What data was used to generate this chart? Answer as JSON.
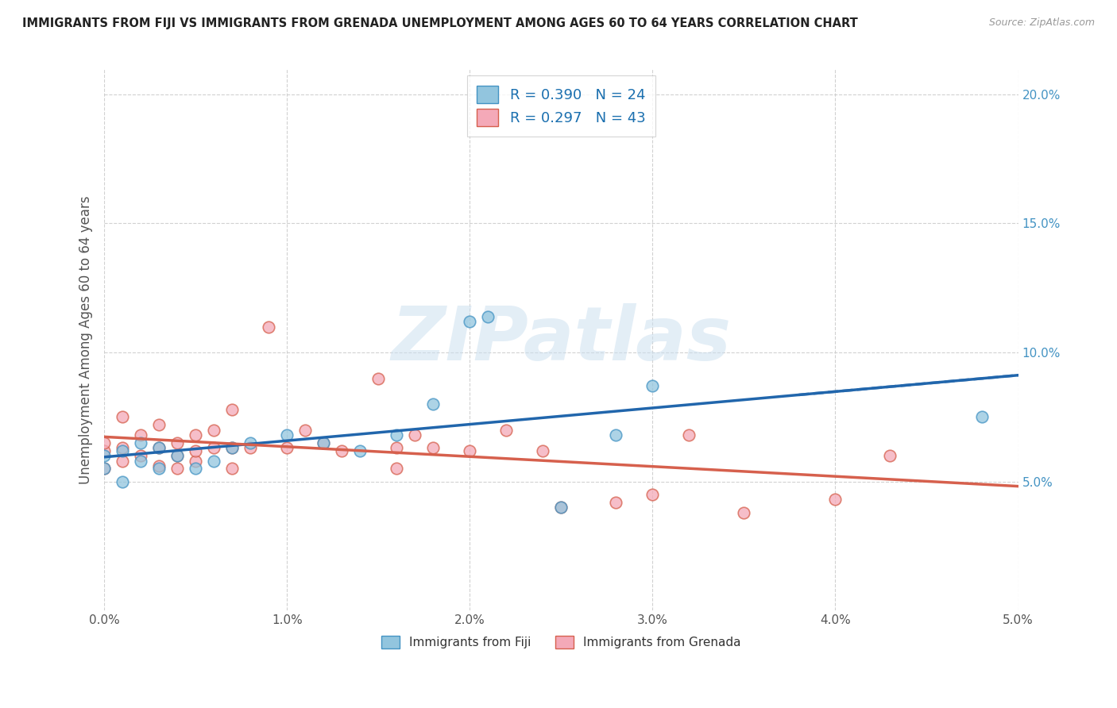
{
  "title": "IMMIGRANTS FROM FIJI VS IMMIGRANTS FROM GRENADA UNEMPLOYMENT AMONG AGES 60 TO 64 YEARS CORRELATION CHART",
  "source": "Source: ZipAtlas.com",
  "ylabel": "Unemployment Among Ages 60 to 64 years",
  "xlim": [
    0.0,
    0.05
  ],
  "ylim": [
    0.0,
    0.21
  ],
  "fiji_color": "#92c5de",
  "fiji_edge_color": "#4393c3",
  "grenada_color": "#f4a9b8",
  "grenada_edge_color": "#d6604d",
  "fiji_line_color": "#2166ac",
  "grenada_line_color": "#d6604d",
  "fiji_R": 0.39,
  "fiji_N": 24,
  "grenada_R": 0.297,
  "grenada_N": 43,
  "watermark_text": "ZIPatlas",
  "background_color": "#ffffff",
  "fiji_x": [
    0.0,
    0.0,
    0.001,
    0.001,
    0.002,
    0.002,
    0.003,
    0.003,
    0.004,
    0.005,
    0.006,
    0.007,
    0.008,
    0.01,
    0.012,
    0.014,
    0.016,
    0.018,
    0.02,
    0.021,
    0.025,
    0.028,
    0.03,
    0.048
  ],
  "fiji_y": [
    0.055,
    0.06,
    0.05,
    0.062,
    0.058,
    0.065,
    0.055,
    0.063,
    0.06,
    0.055,
    0.058,
    0.063,
    0.065,
    0.068,
    0.065,
    0.062,
    0.068,
    0.08,
    0.112,
    0.114,
    0.04,
    0.068,
    0.087,
    0.075
  ],
  "grenada_x": [
    0.0,
    0.0,
    0.0,
    0.001,
    0.001,
    0.001,
    0.002,
    0.002,
    0.003,
    0.003,
    0.003,
    0.004,
    0.004,
    0.004,
    0.005,
    0.005,
    0.005,
    0.006,
    0.006,
    0.007,
    0.007,
    0.007,
    0.008,
    0.009,
    0.01,
    0.011,
    0.012,
    0.013,
    0.015,
    0.016,
    0.016,
    0.017,
    0.018,
    0.02,
    0.022,
    0.024,
    0.025,
    0.028,
    0.03,
    0.032,
    0.035,
    0.04,
    0.043
  ],
  "grenada_y": [
    0.055,
    0.062,
    0.065,
    0.058,
    0.063,
    0.075,
    0.06,
    0.068,
    0.056,
    0.063,
    0.072,
    0.055,
    0.06,
    0.065,
    0.058,
    0.062,
    0.068,
    0.063,
    0.07,
    0.055,
    0.063,
    0.078,
    0.063,
    0.11,
    0.063,
    0.07,
    0.065,
    0.062,
    0.09,
    0.055,
    0.063,
    0.068,
    0.063,
    0.062,
    0.07,
    0.062,
    0.04,
    0.042,
    0.045,
    0.068,
    0.038,
    0.043,
    0.06
  ]
}
